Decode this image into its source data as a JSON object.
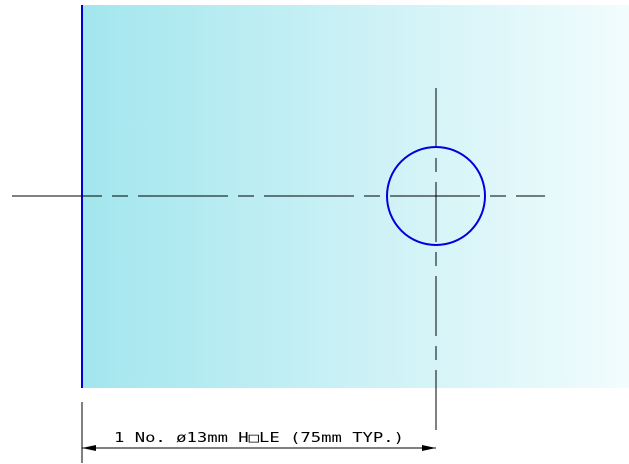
{
  "drawing": {
    "dimension_label": "1 No. ø13mm H□LE (75mm TYP.)"
  },
  "colors": {
    "plate_fill_start": "#a3e6ee",
    "plate_fill_end": "#f2fcfd",
    "plate_edge": "#0000dd",
    "hole_outline": "#0000dd",
    "centerline": "#000000",
    "dimension_line": "#000000"
  }
}
